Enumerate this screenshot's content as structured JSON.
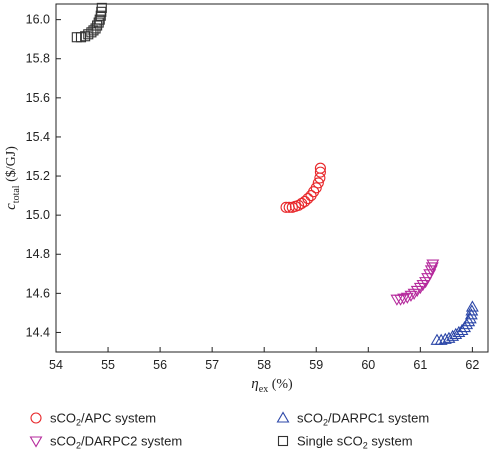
{
  "chart_data": {
    "type": "scatter",
    "xlabel": {
      "symbol": "η",
      "sub": "ex",
      "unit": " (%)"
    },
    "ylabel": {
      "symbol": "c",
      "sub": "total",
      "unit": " ($/GJ)"
    },
    "xlim": [
      54,
      62.3
    ],
    "ylim": [
      14.3,
      16.08
    ],
    "xticks": [
      54,
      55,
      56,
      57,
      58,
      59,
      60,
      61,
      62
    ],
    "yticks": [
      14.4,
      14.6,
      14.8,
      15.0,
      15.2,
      15.4,
      15.6,
      15.8,
      16.0
    ],
    "xtick_labels": [
      "54",
      "55",
      "56",
      "57",
      "58",
      "59",
      "60",
      "61",
      "62"
    ],
    "ytick_labels": [
      "14.4",
      "14.6",
      "14.8",
      "15.0",
      "15.2",
      "15.4",
      "15.6",
      "15.8",
      "16.0"
    ],
    "grid": false,
    "legend_position": "bottom",
    "series": [
      {
        "name": "sCO2/APC system",
        "marker": "circle",
        "color": "#e8282b",
        "x": [
          58.42,
          58.48,
          58.54,
          58.6,
          58.66,
          58.72,
          58.78,
          58.84,
          58.9,
          58.95,
          59.0,
          59.04,
          59.07,
          59.08,
          59.08
        ],
        "y": [
          15.04,
          15.04,
          15.04,
          15.045,
          15.05,
          15.06,
          15.07,
          15.085,
          15.1,
          15.12,
          15.14,
          15.165,
          15.19,
          15.22,
          15.24
        ]
      },
      {
        "name": "sCO2/DARPC2 system",
        "marker": "triangle-down",
        "color": "#b5299c",
        "x": [
          60.55,
          60.62,
          60.68,
          60.75,
          60.82,
          60.88,
          60.94,
          61.0,
          61.05,
          61.1,
          61.14,
          61.18,
          61.21,
          61.23,
          61.24
        ],
        "y": [
          14.57,
          14.57,
          14.575,
          14.58,
          14.59,
          14.6,
          14.615,
          14.63,
          14.645,
          14.66,
          14.68,
          14.7,
          14.72,
          14.735,
          14.75
        ]
      },
      {
        "name": "sCO2/DARPC1 system",
        "marker": "triangle-up",
        "color": "#2c47a8",
        "x": [
          61.32,
          61.4,
          61.48,
          61.55,
          61.62,
          61.68,
          61.74,
          61.8,
          61.85,
          61.89,
          61.93,
          61.96,
          61.98,
          61.99,
          62.0
        ],
        "y": [
          14.36,
          14.36,
          14.365,
          14.37,
          14.38,
          14.39,
          14.4,
          14.41,
          14.425,
          14.44,
          14.455,
          14.47,
          14.49,
          14.51,
          14.53
        ]
      },
      {
        "name": "Single sCO2 system",
        "marker": "square",
        "color": "#333333",
        "x": [
          54.4,
          54.48,
          54.56,
          54.62,
          54.68,
          54.72,
          54.76,
          54.79,
          54.82,
          54.84,
          54.86,
          54.87,
          54.88
        ],
        "y": [
          15.91,
          15.91,
          15.915,
          15.925,
          15.935,
          15.945,
          15.955,
          15.97,
          15.985,
          16.0,
          16.02,
          16.04,
          16.06
        ]
      }
    ],
    "legend": [
      {
        "series": 0,
        "label_html": [
          "sCO",
          "2",
          "/APC system"
        ]
      },
      {
        "series": 2,
        "label_html": [
          "sCO",
          "2",
          "/DARPC1 system"
        ]
      },
      {
        "series": 1,
        "label_html": [
          "sCO",
          "2",
          "/DARPC2 system"
        ]
      },
      {
        "series": 3,
        "label_html": [
          "Single sCO",
          "2",
          " system"
        ]
      }
    ]
  }
}
